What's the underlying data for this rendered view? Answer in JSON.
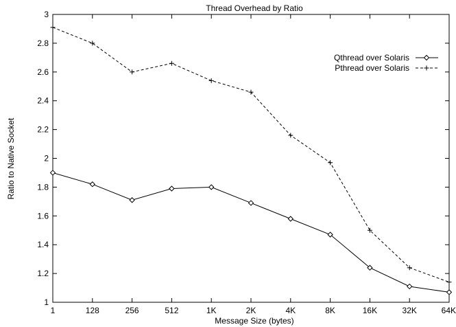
{
  "chart_data": {
    "type": "line",
    "title": "Thread Overhead by Ratio",
    "xlabel": "Message Size (bytes)",
    "ylabel": "Ratio to Native Socket",
    "categories": [
      "1",
      "128",
      "256",
      "512",
      "1K",
      "2K",
      "4K",
      "8K",
      "16K",
      "32K",
      "64K"
    ],
    "ylim": [
      1,
      3
    ],
    "yticks": [
      "1",
      "1.2",
      "1.4",
      "1.6",
      "1.8",
      "2",
      "2.2",
      "2.4",
      "2.6",
      "2.8",
      "3"
    ],
    "grid": false,
    "legend_position": "top-right",
    "series": [
      {
        "name": "Qthread over Solaris",
        "line_style": "solid",
        "marker": "diamond",
        "values": [
          1.9,
          1.82,
          1.71,
          1.79,
          1.8,
          1.69,
          1.58,
          1.47,
          1.24,
          1.11,
          1.07
        ]
      },
      {
        "name": "Pthread over Solaris",
        "line_style": "dashed",
        "marker": "plus",
        "values": [
          2.91,
          2.8,
          2.6,
          2.66,
          2.54,
          2.46,
          2.16,
          1.97,
          1.5,
          1.24,
          1.14
        ]
      }
    ]
  }
}
